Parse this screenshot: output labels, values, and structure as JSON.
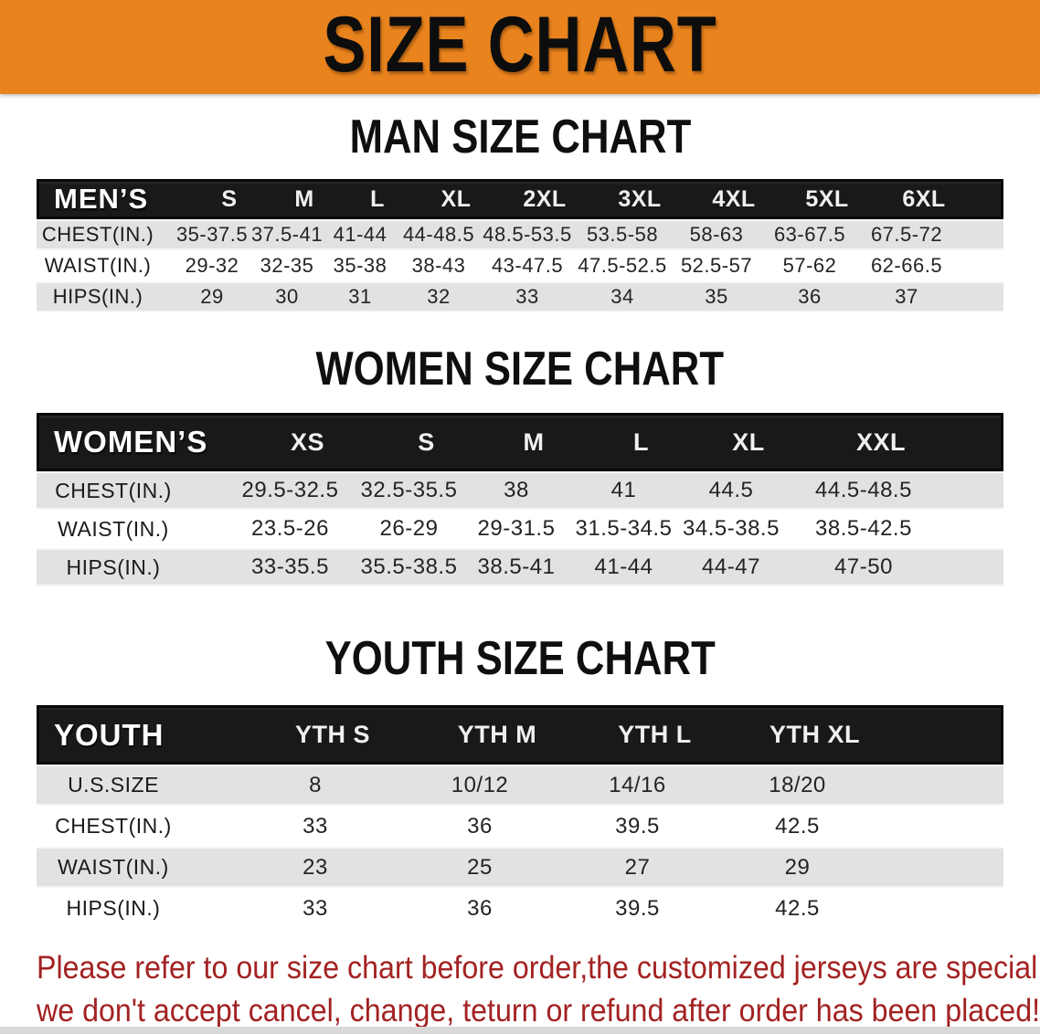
{
  "banner": {
    "title": "SIZE CHART",
    "bg_color": "#E8831E",
    "text_color": "#0d0d0d"
  },
  "colors": {
    "table_header_bg": "#191919",
    "row_stripe": "#E2E2E2",
    "footer_text": "#A32222"
  },
  "sections": [
    {
      "heading": "MAN SIZE CHART",
      "table": {
        "header_label": "MEN’S",
        "columns": [
          "S",
          "M",
          "L",
          "XL",
          "2XL",
          "3XL",
          "4XL",
          "5XL",
          "6XL"
        ],
        "rows": [
          {
            "label": "CHEST(IN.)",
            "values": [
              "35-37.5",
              "37.5-41",
              "41-44",
              "44-48.5",
              "48.5-53.5",
              "53.5-58",
              "58-63",
              "63-67.5",
              "67.5-72"
            ]
          },
          {
            "label": "WAIST(IN.)",
            "values": [
              "29-32",
              "32-35",
              "35-38",
              "38-43",
              "43-47.5",
              "47.5-52.5",
              "52.5-57",
              "57-62",
              "62-66.5"
            ]
          },
          {
            "label": "HIPS(IN.)",
            "values": [
              "29",
              "30",
              "31",
              "32",
              "33",
              "34",
              "35",
              "36",
              "37"
            ]
          }
        ]
      }
    },
    {
      "heading": "WOMEN SIZE CHART",
      "table": {
        "header_label": "WOMEN’S",
        "columns": [
          "XS",
          "S",
          "M",
          "L",
          "XL",
          "XXL"
        ],
        "rows": [
          {
            "label": "CHEST(IN.)",
            "values": [
              "29.5-32.5",
              "32.5-35.5",
              "38",
              "41",
              "44.5",
              "44.5-48.5"
            ]
          },
          {
            "label": "WAIST(IN.)",
            "values": [
              "23.5-26",
              "26-29",
              "29-31.5",
              "31.5-34.5",
              "34.5-38.5",
              "38.5-42.5"
            ]
          },
          {
            "label": "HIPS(IN.)",
            "values": [
              "33-35.5",
              "35.5-38.5",
              "38.5-41",
              "41-44",
              "44-47",
              "47-50"
            ]
          }
        ]
      }
    },
    {
      "heading": "YOUTH SIZE CHART",
      "table": {
        "header_label": "YOUTH",
        "columns": [
          "YTH S",
          "YTH M",
          "YTH L",
          "YTH XL"
        ],
        "rows": [
          {
            "label": "U.S.SIZE",
            "values": [
              "8",
              "10/12",
              "14/16",
              "18/20"
            ]
          },
          {
            "label": "CHEST(IN.)",
            "values": [
              "33",
              "36",
              "39.5",
              "42.5"
            ]
          },
          {
            "label": "WAIST(IN.)",
            "values": [
              "23",
              "25",
              "27",
              "29"
            ]
          },
          {
            "label": "HIPS(IN.)",
            "values": [
              "33",
              "36",
              "39.5",
              "42.5"
            ]
          }
        ]
      }
    }
  ],
  "footer": {
    "line1": "Please refer to our size chart before order,the customized jerseys are special products,",
    "line2": "we don't accept cancel, change, teturn or refund after order has been placed!"
  }
}
